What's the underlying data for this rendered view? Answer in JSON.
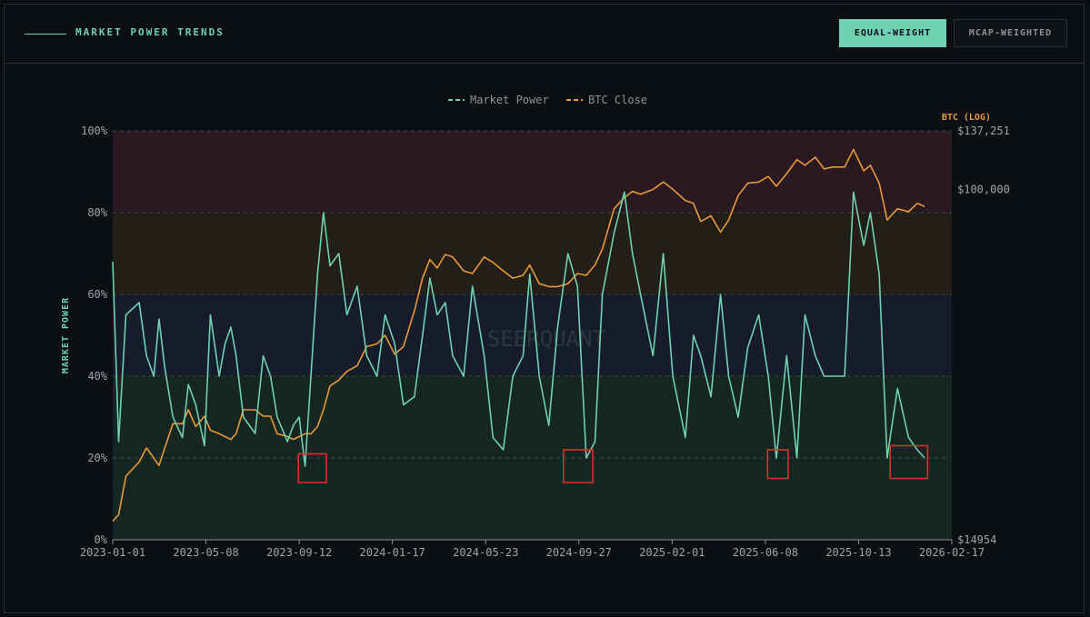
{
  "header": {
    "title": "MARKET POWER TRENDS",
    "tabs": [
      {
        "label": "EQUAL-WEIGHT",
        "active": true
      },
      {
        "label": "MCAP-WEIGHTED",
        "active": false
      }
    ]
  },
  "watermark": "SEERQUANT",
  "colors": {
    "market_power": "#6fd0b2",
    "btc": "#e8993a",
    "highlight": "#d9302c"
  },
  "chart_data": {
    "type": "line",
    "legend": [
      "Market Power",
      "BTC Close"
    ],
    "legend_position": "top-center",
    "ylabel": "MARKET POWER",
    "y2label": "BTC (LOG)",
    "ylim": [
      0,
      100
    ],
    "y_ticks": [
      0,
      20,
      40,
      60,
      80,
      100
    ],
    "y_tick_labels": [
      "0%",
      "20%",
      "40%",
      "60%",
      "80%",
      "100%"
    ],
    "y2lim": [
      14954,
      137251
    ],
    "y2_scale": "log",
    "y2_ticks": [
      14954,
      100000,
      137251
    ],
    "y2_tick_labels": [
      "$14954",
      "$100,000",
      "$137,251"
    ],
    "x_range": [
      "2023-01-01",
      "2026-02-17"
    ],
    "x_tick_labels": [
      "2023-01-01",
      "2023-05-08",
      "2023-09-12",
      "2024-01-17",
      "2024-05-23",
      "2024-09-27",
      "2025-02-01",
      "2025-06-08",
      "2025-10-13",
      "2026-02-17"
    ],
    "bands": [
      {
        "from": 80,
        "to": 100,
        "color": "#2a1920"
      },
      {
        "from": 60,
        "to": 80,
        "color": "#231e17"
      },
      {
        "from": 40,
        "to": 60,
        "color": "#161c2a"
      },
      {
        "from": 0,
        "to": 40,
        "color": "#162620"
      }
    ],
    "grid": "dashed-horizontal",
    "series": [
      {
        "name": "Market Power",
        "x": [
          "2023-01-01",
          "2023-01-09",
          "2023-01-19",
          "2023-02-06",
          "2023-02-16",
          "2023-02-26",
          "2023-03-05",
          "2023-03-13",
          "2023-03-24",
          "2023-04-06",
          "2023-04-14",
          "2023-04-24",
          "2023-05-06",
          "2023-05-14",
          "2023-05-26",
          "2023-06-03",
          "2023-06-11",
          "2023-06-18",
          "2023-06-28",
          "2023-07-14",
          "2023-07-25",
          "2023-08-04",
          "2023-08-13",
          "2023-08-27",
          "2023-09-04",
          "2023-09-12",
          "2023-09-20",
          "2023-09-28",
          "2023-10-07",
          "2023-10-15",
          "2023-10-24",
          "2023-11-05",
          "2023-11-16",
          "2023-11-30",
          "2023-12-13",
          "2023-12-27",
          "2024-01-07",
          "2024-01-20",
          "2024-02-01",
          "2024-02-16",
          "2024-02-27",
          "2024-03-08",
          "2024-03-18",
          "2024-03-29",
          "2024-04-08",
          "2024-04-23",
          "2024-05-05",
          "2024-05-21",
          "2024-06-02",
          "2024-06-16",
          "2024-06-29",
          "2024-07-13",
          "2024-07-22",
          "2024-08-04",
          "2024-08-17",
          "2024-08-29",
          "2024-09-12",
          "2024-09-25",
          "2024-10-07",
          "2024-10-19",
          "2024-10-29",
          "2024-11-14",
          "2024-11-28",
          "2024-12-09",
          "2024-12-20",
          "2025-01-06",
          "2025-01-20",
          "2025-02-02",
          "2025-02-19",
          "2025-03-02",
          "2025-03-12",
          "2025-03-26",
          "2025-04-08",
          "2025-04-19",
          "2025-05-02",
          "2025-05-15",
          "2025-05-30",
          "2025-06-12",
          "2025-06-23",
          "2025-07-07",
          "2025-07-21",
          "2025-08-01",
          "2025-08-15",
          "2025-08-27",
          "2025-09-08",
          "2025-09-24",
          "2025-10-06",
          "2025-10-20",
          "2025-10-29",
          "2025-11-10",
          "2025-11-21",
          "2025-12-05",
          "2025-12-20",
          "2026-01-01",
          "2026-01-11"
        ],
        "values": [
          68,
          24,
          55,
          58,
          45,
          40,
          54,
          42,
          30,
          25,
          38,
          33,
          23,
          55,
          40,
          48,
          52,
          45,
          30,
          26,
          45,
          40,
          30,
          24,
          28,
          30,
          18,
          40,
          65,
          80,
          67,
          70,
          55,
          62,
          45,
          40,
          55,
          48,
          33,
          35,
          50,
          64,
          55,
          58,
          45,
          40,
          62,
          45,
          25,
          22,
          40,
          45,
          65,
          40,
          28,
          52,
          70,
          62,
          20,
          24,
          60,
          75,
          85,
          70,
          60,
          45,
          70,
          40,
          25,
          50,
          45,
          35,
          60,
          40,
          30,
          47,
          55,
          40,
          20,
          45,
          20,
          55,
          45,
          40,
          40,
          40,
          85,
          72,
          80,
          65,
          20,
          37,
          25,
          22,
          20
        ]
      },
      {
        "name": "BTC Close",
        "x": [
          "2023-01-01",
          "2023-01-09",
          "2023-01-19",
          "2023-02-06",
          "2023-02-16",
          "2023-03-05",
          "2023-03-13",
          "2023-03-24",
          "2023-04-06",
          "2023-04-14",
          "2023-04-24",
          "2023-05-06",
          "2023-05-14",
          "2023-05-26",
          "2023-06-11",
          "2023-06-18",
          "2023-06-28",
          "2023-07-14",
          "2023-07-25",
          "2023-08-04",
          "2023-08-13",
          "2023-08-27",
          "2023-09-04",
          "2023-09-12",
          "2023-09-20",
          "2023-09-28",
          "2023-10-07",
          "2023-10-15",
          "2023-10-24",
          "2023-11-05",
          "2023-11-16",
          "2023-11-30",
          "2023-12-13",
          "2023-12-27",
          "2024-01-07",
          "2024-01-20",
          "2024-02-01",
          "2024-02-16",
          "2024-02-27",
          "2024-03-08",
          "2024-03-18",
          "2024-03-29",
          "2024-04-08",
          "2024-04-23",
          "2024-05-05",
          "2024-05-21",
          "2024-06-02",
          "2024-06-16",
          "2024-06-29",
          "2024-07-13",
          "2024-07-22",
          "2024-08-04",
          "2024-08-17",
          "2024-08-29",
          "2024-09-12",
          "2024-09-25",
          "2024-10-07",
          "2024-10-19",
          "2024-10-29",
          "2024-11-14",
          "2024-11-28",
          "2024-12-09",
          "2024-12-20",
          "2025-01-06",
          "2025-01-20",
          "2025-02-02",
          "2025-02-19",
          "2025-03-02",
          "2025-03-12",
          "2025-03-26",
          "2025-04-08",
          "2025-04-19",
          "2025-05-02",
          "2025-05-15",
          "2025-05-30",
          "2025-06-12",
          "2025-06-23",
          "2025-07-07",
          "2025-07-21",
          "2025-08-01",
          "2025-08-15",
          "2025-08-27",
          "2025-09-08",
          "2025-09-24",
          "2025-10-06",
          "2025-10-20",
          "2025-10-29",
          "2025-11-10",
          "2025-11-21",
          "2025-12-05",
          "2025-12-20",
          "2026-01-01",
          "2026-01-11"
        ],
        "values": [
          16547,
          17127,
          21114,
          22812,
          24608,
          22375,
          24608,
          28053,
          28053,
          30242,
          27616,
          29219,
          27084,
          26567,
          25756,
          26567,
          30242,
          30242,
          29219,
          29219,
          26567,
          26167,
          25756,
          26166,
          26567,
          26567,
          27616,
          30242,
          34425,
          35528,
          37249,
          38418,
          42624,
          43251,
          45307,
          40890,
          42624,
          51779,
          61776,
          68314,
          65236,
          70235,
          69260,
          64246,
          63344,
          69260,
          67280,
          64247,
          61775,
          62712,
          66324,
          59938,
          59004,
          59000,
          59938,
          63344,
          62712,
          66326,
          72296,
          89986,
          95550,
          98866,
          97377,
          99884,
          104026,
          100000,
          94121,
          92659,
          84005,
          86593,
          79236,
          84629,
          96630,
          103330,
          104026,
          107201,
          101637,
          108843,
          117486,
          113900,
          119002,
          111670,
          112807,
          112807,
          124039,
          110500,
          113900,
          103330,
          84629,
          89986,
          88554,
          92659,
          91151
        ]
      }
    ],
    "annotations": [
      {
        "type": "box",
        "x": [
          "2023-09-11",
          "2023-10-19"
        ],
        "y": [
          14,
          21
        ]
      },
      {
        "type": "box",
        "x": [
          "2024-09-06",
          "2024-10-16"
        ],
        "y": [
          14,
          22
        ]
      },
      {
        "type": "box",
        "x": [
          "2025-06-11",
          "2025-07-09"
        ],
        "y": [
          15,
          22
        ]
      },
      {
        "type": "box",
        "x": [
          "2025-11-25",
          "2026-01-15"
        ],
        "y": [
          15,
          23
        ]
      }
    ]
  }
}
